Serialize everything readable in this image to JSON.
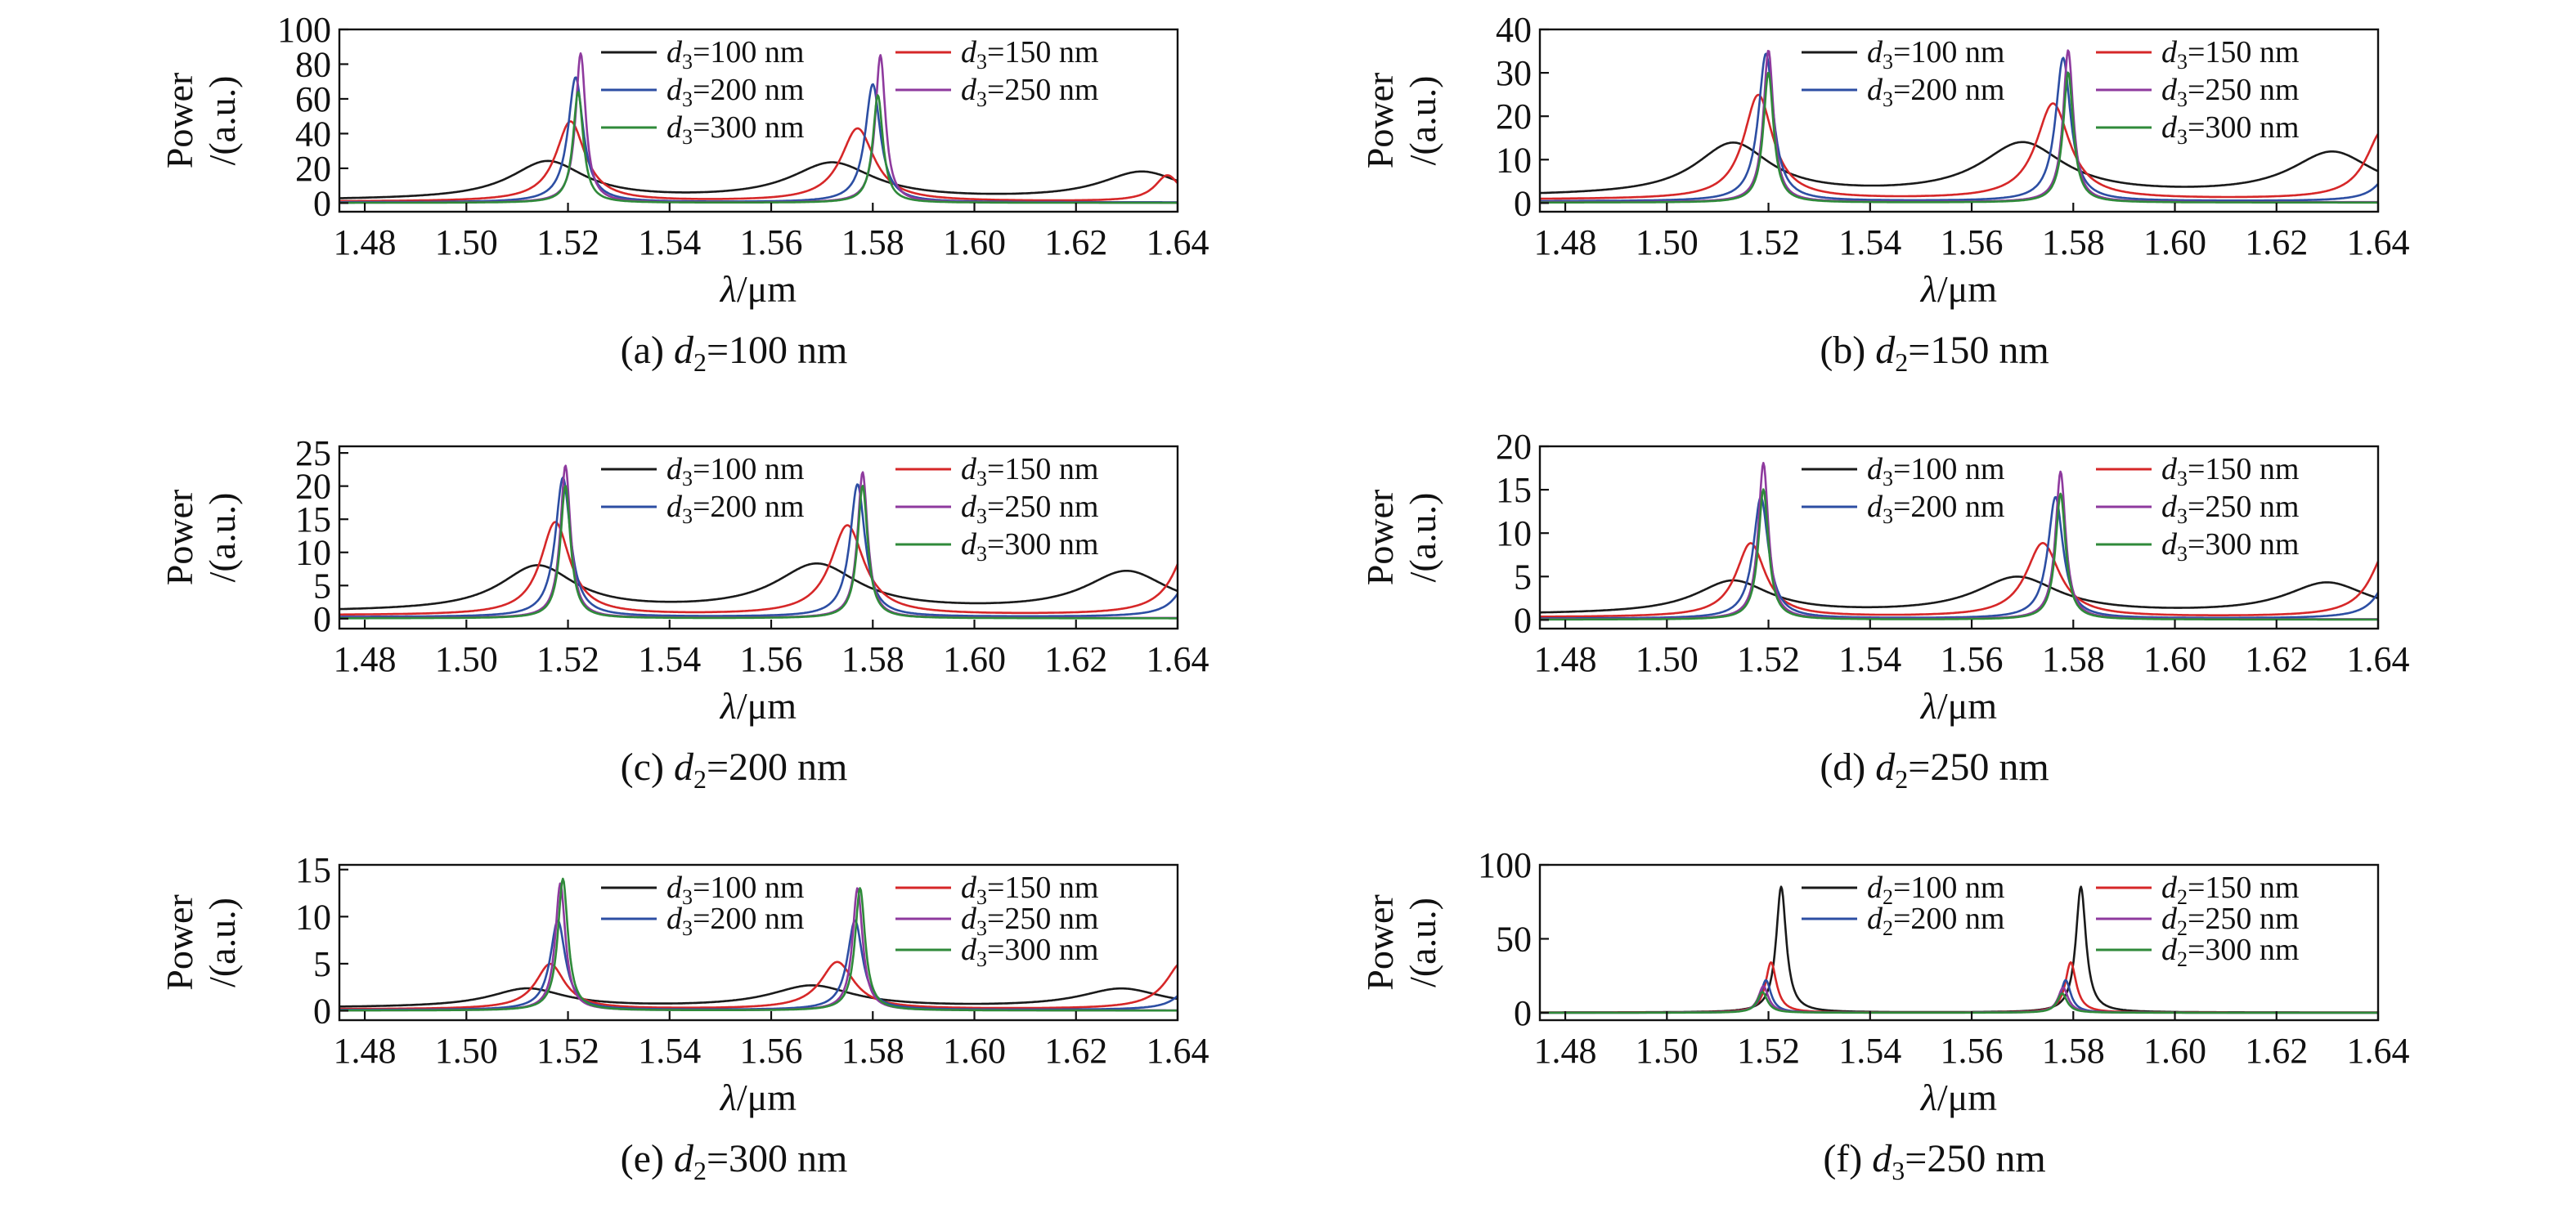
{
  "colors": {
    "d100": "#1a1a1a",
    "d150": "#d62728",
    "d200": "#2c4ea3",
    "d250": "#8e3a9e",
    "d300": "#2f8a3a",
    "axis": "#111111"
  },
  "chart_data": [
    {
      "type": "line",
      "panel": "a",
      "caption": {
        "prefix": "(a) ",
        "var": "d",
        "sub": "2",
        "suffix": "=100 nm"
      },
      "ylabel_line1": "Power",
      "ylabel_line2": "/(a.u.)",
      "xlabel_sym": "λ",
      "xlabel_unit": "/μm",
      "xlim": [
        1.475,
        1.64
      ],
      "xticks": [
        "1.48",
        "1.50",
        "1.52",
        "1.54",
        "1.56",
        "1.58",
        "1.60",
        "1.62",
        "1.64"
      ],
      "ylim": [
        -5,
        100
      ],
      "yticks": [
        "0",
        "20",
        "40",
        "60",
        "80",
        "100"
      ],
      "legend_var": "d",
      "legend_sub": "3",
      "series": [
        {
          "name": "=100 nm",
          "color_key": "d100",
          "base": 1.5,
          "peaks": [
            [
              1.516,
              22,
              0.009
            ],
            [
              1.572,
              21,
              0.01
            ],
            [
              1.633,
              16,
              0.01
            ]
          ]
        },
        {
          "name": "=150 nm",
          "color_key": "d150",
          "base": 0.8,
          "peaks": [
            [
              1.5205,
              46,
              0.0035
            ],
            [
              1.577,
              42,
              0.004
            ],
            [
              1.638,
              15,
              0.003
            ]
          ]
        },
        {
          "name": "=200 nm",
          "color_key": "d200",
          "base": 0.4,
          "peaks": [
            [
              1.5215,
              72,
              0.0018
            ],
            [
              1.58,
              68,
              0.0018
            ]
          ]
        },
        {
          "name": "=250 nm",
          "color_key": "d250",
          "base": 0.2,
          "peaks": [
            [
              1.5225,
              86,
              0.0012
            ],
            [
              1.5815,
              85,
              0.0012
            ]
          ]
        },
        {
          "name": "=300 nm",
          "color_key": "d300",
          "base": 0.1,
          "peaks": [
            [
              1.522,
              64,
              0.0012
            ],
            [
              1.581,
              62,
              0.0012
            ]
          ]
        }
      ]
    },
    {
      "type": "line",
      "panel": "b",
      "caption": {
        "prefix": "(b) ",
        "var": "d",
        "sub": "2",
        "suffix": "=150 nm"
      },
      "ylabel_line1": "Power",
      "ylabel_line2": "/(a.u.)",
      "xlabel_sym": "λ",
      "xlabel_unit": "/μm",
      "xlim": [
        1.475,
        1.64
      ],
      "xticks": [
        "1.48",
        "1.50",
        "1.52",
        "1.54",
        "1.56",
        "1.58",
        "1.60",
        "1.62",
        "1.64"
      ],
      "ylim": [
        -2,
        40
      ],
      "yticks": [
        "0",
        "10",
        "20",
        "30",
        "40"
      ],
      "legend_var": "d",
      "legend_sub": "3",
      "series": [
        {
          "name": "=100 nm",
          "color_key": "d100",
          "base": 1.5,
          "peaks": [
            [
              1.513,
              12,
              0.009
            ],
            [
              1.57,
              12,
              0.01
            ],
            [
              1.631,
              10,
              0.01
            ]
          ]
        },
        {
          "name": "=150 nm",
          "color_key": "d150",
          "base": 0.8,
          "peaks": [
            [
              1.518,
              24,
              0.0035
            ],
            [
              1.576,
              22,
              0.004
            ],
            [
              1.641,
              16,
              0.004
            ]
          ]
        },
        {
          "name": "=200 nm",
          "color_key": "d200",
          "base": 0.4,
          "peaks": [
            [
              1.5195,
              34,
              0.0018
            ],
            [
              1.578,
              33,
              0.0018
            ],
            [
              1.643,
              8,
              0.003
            ]
          ]
        },
        {
          "name": "=250 nm",
          "color_key": "d250",
          "base": 0.2,
          "peaks": [
            [
              1.52,
              35,
              0.0012
            ],
            [
              1.579,
              35,
              0.0012
            ]
          ]
        },
        {
          "name": "=300 nm",
          "color_key": "d300",
          "base": 0.1,
          "peaks": [
            [
              1.52,
              30,
              0.0012
            ],
            [
              1.579,
              30,
              0.0012
            ]
          ]
        }
      ]
    },
    {
      "type": "line",
      "panel": "c",
      "caption": {
        "prefix": "(c) ",
        "var": "d",
        "sub": "2",
        "suffix": "=200 nm"
      },
      "ylabel_line1": "Power",
      "ylabel_line2": "/(a.u.)",
      "xlabel_sym": "λ",
      "xlabel_unit": "/μm",
      "xlim": [
        1.475,
        1.64
      ],
      "xticks": [
        "1.48",
        "1.50",
        "1.52",
        "1.54",
        "1.56",
        "1.58",
        "1.60",
        "1.62",
        "1.64"
      ],
      "ylim": [
        -1.5,
        26
      ],
      "yticks": [
        "0",
        "5",
        "10",
        "15",
        "20",
        "25"
      ],
      "legend_var": "d",
      "legend_sub": "3",
      "series": [
        {
          "name": "=100 nm",
          "color_key": "d100",
          "base": 1.0,
          "peaks": [
            [
              1.514,
              6.8,
              0.009
            ],
            [
              1.569,
              7.0,
              0.01
            ],
            [
              1.63,
              6.0,
              0.01
            ]
          ]
        },
        {
          "name": "=150 nm",
          "color_key": "d150",
          "base": 0.5,
          "peaks": [
            [
              1.5175,
              14,
              0.0035
            ],
            [
              1.575,
              13.5,
              0.004
            ],
            [
              1.643,
              12,
              0.004
            ]
          ]
        },
        {
          "name": "=200 nm",
          "color_key": "d200",
          "base": 0.25,
          "peaks": [
            [
              1.519,
              21,
              0.0018
            ],
            [
              1.577,
              20,
              0.0018
            ],
            [
              1.643,
              7,
              0.003
            ]
          ]
        },
        {
          "name": "=250 nm",
          "color_key": "d250",
          "base": 0.1,
          "peaks": [
            [
              1.5195,
              23,
              0.0012
            ],
            [
              1.578,
              22,
              0.0012
            ]
          ]
        },
        {
          "name": "=300 nm",
          "color_key": "d300",
          "base": 0.05,
          "peaks": [
            [
              1.5195,
              20,
              0.0012
            ],
            [
              1.578,
              20,
              0.0012
            ]
          ]
        }
      ]
    },
    {
      "type": "line",
      "panel": "d",
      "caption": {
        "prefix": "(d) ",
        "var": "d",
        "sub": "2",
        "suffix": "=250 nm"
      },
      "ylabel_line1": "Power",
      "ylabel_line2": "/(a.u.)",
      "xlabel_sym": "λ",
      "xlabel_unit": "/μm",
      "xlim": [
        1.475,
        1.64
      ],
      "xticks": [
        "1.48",
        "1.50",
        "1.52",
        "1.54",
        "1.56",
        "1.58",
        "1.60",
        "1.62",
        "1.64"
      ],
      "ylim": [
        -1,
        20
      ],
      "yticks": [
        "0",
        "5",
        "10",
        "15",
        "20"
      ],
      "legend_var": "d",
      "legend_sub": "3",
      "series": [
        {
          "name": "=100 nm",
          "color_key": "d100",
          "base": 0.6,
          "peaks": [
            [
              1.513,
              3.8,
              0.009
            ],
            [
              1.569,
              4.2,
              0.01
            ],
            [
              1.63,
              3.6,
              0.01
            ]
          ]
        },
        {
          "name": "=150 nm",
          "color_key": "d150",
          "base": 0.3,
          "peaks": [
            [
              1.5165,
              8.5,
              0.0035
            ],
            [
              1.574,
              8.5,
              0.004
            ],
            [
              1.642,
              8,
              0.004
            ]
          ]
        },
        {
          "name": "=200 nm",
          "color_key": "d200",
          "base": 0.15,
          "peaks": [
            [
              1.5185,
              14,
              0.0018
            ],
            [
              1.5765,
              14,
              0.0018
            ],
            [
              1.643,
              6,
              0.003
            ]
          ]
        },
        {
          "name": "=250 nm",
          "color_key": "d250",
          "base": 0.08,
          "peaks": [
            [
              1.519,
              18,
              0.0012
            ],
            [
              1.5775,
              17,
              0.0012
            ]
          ]
        },
        {
          "name": "=300 nm",
          "color_key": "d300",
          "base": 0.04,
          "peaks": [
            [
              1.519,
              15,
              0.0012
            ],
            [
              1.5775,
              14.5,
              0.0012
            ]
          ]
        }
      ]
    },
    {
      "type": "line",
      "panel": "e",
      "caption": {
        "prefix": "(e) ",
        "var": "d",
        "sub": "2",
        "suffix": "=300 nm"
      },
      "ylabel_line1": "Power",
      "ylabel_line2": "/(a.u.)",
      "xlabel_sym": "λ",
      "xlabel_unit": "/μm",
      "xlim": [
        1.475,
        1.64
      ],
      "xticks": [
        "1.48",
        "1.50",
        "1.52",
        "1.54",
        "1.56",
        "1.58",
        "1.60",
        "1.62",
        "1.64"
      ],
      "ylim": [
        -1,
        15.5
      ],
      "yticks": [
        "0",
        "5",
        "10",
        "15"
      ],
      "legend_var": "d",
      "legend_sub": "3",
      "series": [
        {
          "name": "=100 nm",
          "color_key": "d100",
          "base": 0.3,
          "peaks": [
            [
              1.512,
              2.0,
              0.009
            ],
            [
              1.568,
              2.3,
              0.01
            ],
            [
              1.629,
              2.0,
              0.01
            ]
          ]
        },
        {
          "name": "=150 nm",
          "color_key": "d150",
          "base": 0.15,
          "peaks": [
            [
              1.5165,
              4.8,
              0.0035
            ],
            [
              1.573,
              5.0,
              0.004
            ],
            [
              1.641,
              5,
              0.004
            ]
          ]
        },
        {
          "name": "=200 nm",
          "color_key": "d200",
          "base": 0.08,
          "peaks": [
            [
              1.518,
              9.5,
              0.0018
            ],
            [
              1.5765,
              9.5,
              0.0018
            ],
            [
              1.643,
              3,
              0.003
            ]
          ]
        },
        {
          "name": "=250 nm",
          "color_key": "d250",
          "base": 0.04,
          "peaks": [
            [
              1.5185,
              13.5,
              0.0012
            ],
            [
              1.577,
              13,
              0.0012
            ]
          ]
        },
        {
          "name": "=300 nm",
          "color_key": "d300",
          "base": 0.02,
          "peaks": [
            [
              1.519,
              14,
              0.0012
            ],
            [
              1.5775,
              13,
              0.0012
            ]
          ]
        }
      ]
    },
    {
      "type": "line",
      "panel": "f",
      "caption": {
        "prefix": "(f) ",
        "var": "d",
        "sub": "3",
        "suffix": "=250 nm"
      },
      "ylabel_line1": "Power",
      "ylabel_line2": "/(a.u.)",
      "xlabel_sym": "λ",
      "xlabel_unit": "/μm",
      "xlim": [
        1.475,
        1.64
      ],
      "xticks": [
        "1.48",
        "1.50",
        "1.52",
        "1.54",
        "1.56",
        "1.58",
        "1.60",
        "1.62",
        "1.64"
      ],
      "ylim": [
        -5,
        100
      ],
      "yticks": [
        "0",
        "50",
        "100"
      ],
      "legend_var": "d",
      "legend_sub": "2",
      "series": [
        {
          "name": "=100 nm",
          "color_key": "d100",
          "base": 0.2,
          "peaks": [
            [
              1.5225,
              85,
              0.0012
            ],
            [
              1.5815,
              85,
              0.0012
            ]
          ]
        },
        {
          "name": "=150 nm",
          "color_key": "d150",
          "base": 0.1,
          "peaks": [
            [
              1.5205,
              34,
              0.0013
            ],
            [
              1.5795,
              34,
              0.0013
            ]
          ]
        },
        {
          "name": "=200 nm",
          "color_key": "d200",
          "base": 0.05,
          "peaks": [
            [
              1.5195,
              22,
              0.0012
            ],
            [
              1.5785,
              22,
              0.0012
            ]
          ]
        },
        {
          "name": "=250 nm",
          "color_key": "d250",
          "base": 0.03,
          "peaks": [
            [
              1.519,
              18,
              0.0012
            ],
            [
              1.578,
              17,
              0.0012
            ]
          ]
        },
        {
          "name": "=300 nm",
          "color_key": "d300",
          "base": 0.02,
          "peaks": [
            [
              1.5188,
              14,
              0.0012
            ],
            [
              1.5778,
              13,
              0.0012
            ]
          ]
        }
      ]
    }
  ]
}
